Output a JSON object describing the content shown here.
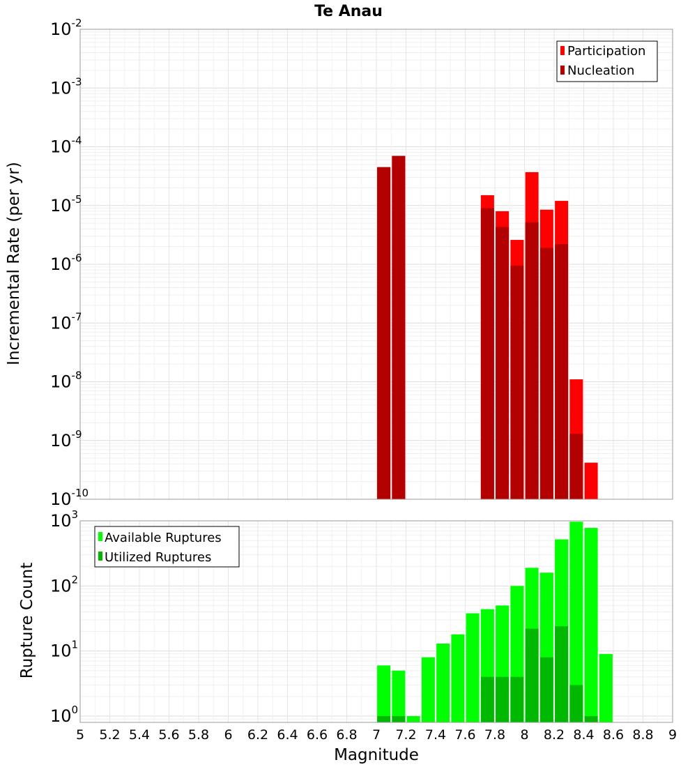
{
  "chart_data": [
    {
      "type": "bar",
      "title": "Te Anau",
      "xlabel": "",
      "ylabel": "Incremental Rate (per yr)",
      "yscale": "log",
      "ylim": [
        1e-10,
        0.01
      ],
      "xlim": [
        5,
        9
      ],
      "grid": true,
      "legend_position": "top-right",
      "y_tick_labels": [
        {
          "base": "10",
          "exp": "-2"
        },
        {
          "base": "10",
          "exp": "-3"
        },
        {
          "base": "10",
          "exp": "-4"
        },
        {
          "base": "10",
          "exp": "-5"
        },
        {
          "base": "10",
          "exp": "-6"
        },
        {
          "base": "10",
          "exp": "-7"
        },
        {
          "base": "10",
          "exp": "-8"
        },
        {
          "base": "10",
          "exp": "-9"
        },
        {
          "base": "10",
          "exp": "-10"
        }
      ],
      "x": [
        7.05,
        7.15,
        7.75,
        7.85,
        7.95,
        8.05,
        8.15,
        8.25,
        8.35,
        8.45
      ],
      "series": [
        {
          "name": "Participation",
          "color": "#ff0000",
          "values": [
            4.5e-05,
            7e-05,
            1.5e-05,
            8e-06,
            2.6e-06,
            3.7e-05,
            8.5e-06,
            1.2e-05,
            1.1e-08,
            4.2e-10
          ]
        },
        {
          "name": "Nucleation",
          "color": "#b30000",
          "values": [
            4.5e-05,
            7e-05,
            9e-06,
            4.3e-06,
            9.5e-07,
            5.2e-06,
            1.9e-06,
            2.2e-06,
            1.3e-09,
            null
          ]
        }
      ]
    },
    {
      "type": "bar",
      "title": "",
      "xlabel": "Magnitude",
      "ylabel": "Rupture Count",
      "yscale": "log",
      "ylim": [
        0.8,
        1000
      ],
      "xlim": [
        5,
        9
      ],
      "grid": true,
      "legend_position": "top-left",
      "y_tick_labels": [
        {
          "base": "10",
          "exp": "3"
        },
        {
          "base": "10",
          "exp": "2"
        },
        {
          "base": "10",
          "exp": "1"
        },
        {
          "base": "10",
          "exp": "0"
        }
      ],
      "x_tick_labels": [
        "5",
        "5.2",
        "5.4",
        "5.6",
        "5.8",
        "6",
        "6.2",
        "6.4",
        "6.6",
        "6.8",
        "7",
        "7.2",
        "7.4",
        "7.6",
        "7.8",
        "8",
        "8.2",
        "8.4",
        "8.6",
        "8.8",
        "9"
      ],
      "x": [
        7.05,
        7.15,
        7.25,
        7.35,
        7.45,
        7.55,
        7.65,
        7.75,
        7.85,
        7.95,
        8.05,
        8.15,
        8.25,
        8.35,
        8.45,
        8.55
      ],
      "series": [
        {
          "name": "Available Ruptures",
          "color": "#00ff00",
          "values": [
            6,
            5,
            1,
            8,
            13,
            18,
            38,
            44,
            50,
            100,
            190,
            160,
            520,
            970,
            780,
            9
          ]
        },
        {
          "name": "Utilized Ruptures",
          "color": "#00b800",
          "values": [
            1,
            1,
            null,
            null,
            null,
            null,
            null,
            4,
            4,
            4,
            22,
            8,
            24,
            3,
            1,
            null
          ]
        }
      ]
    }
  ]
}
